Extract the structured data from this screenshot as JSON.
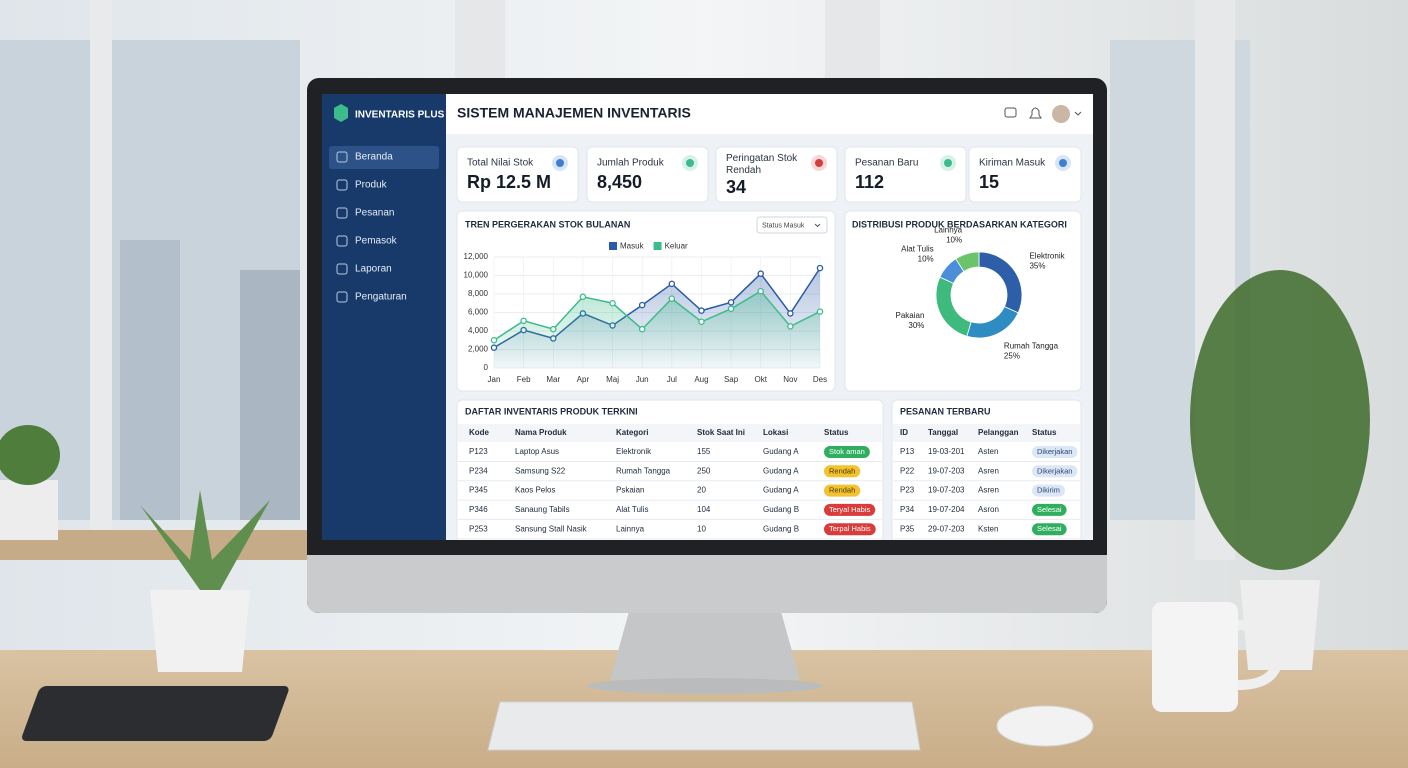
{
  "app": {
    "brand": "INVENTARIS PLUS",
    "title": "SISTEM MANAJEMEN INVENTARIS"
  },
  "sidebar": [
    "Beranda",
    "Produk",
    "Pesanan",
    "Pemasok",
    "Laporan",
    "Pengaturan"
  ],
  "kpis": [
    {
      "label": "Total Nilai Stok",
      "value": "Rp 12.5 M"
    },
    {
      "label": "Jumlah Produk",
      "value": "8,450"
    },
    {
      "label": "Peringatan Stok Rendah",
      "value": "34"
    },
    {
      "label": "Pesanan Baru",
      "value": "112"
    },
    {
      "label": "Kiriman Masuk",
      "value": "15"
    }
  ],
  "chart_data": [
    {
      "type": "line",
      "title": "TREN PERGERAKAN STOK BULANAN",
      "filter": "Status Masuk",
      "categories": [
        "Jan",
        "Feb",
        "Mar",
        "Apr",
        "Maj",
        "Jun",
        "Jul",
        "Aug",
        "Sap",
        "Okt",
        "Nov",
        "Des"
      ],
      "series": [
        {
          "name": "Masuk",
          "color": "#2b5aa6",
          "values": [
            2200,
            4100,
            3200,
            5900,
            4600,
            6800,
            9100,
            6200,
            7100,
            10200,
            5900,
            10800
          ]
        },
        {
          "name": "Keluar",
          "color": "#3dbb8a",
          "values": [
            3000,
            5100,
            4200,
            7700,
            7000,
            4200,
            7500,
            5000,
            6400,
            8300,
            4500,
            6100
          ]
        }
      ],
      "ylim": [
        0,
        12000
      ],
      "yticks": [
        0,
        {
          "value": 2000,
          "label": "2,000"
        },
        {
          "value": 4000,
          "label": "4,000"
        },
        {
          "value": 6000,
          "label": "6,000"
        },
        {
          "value": 8000,
          "label": "8,000"
        },
        {
          "value": 10000,
          "label": "10,000"
        },
        {
          "value": 12000,
          "label": "12,000"
        }
      ],
      "grid": true,
      "legend": "top"
    },
    {
      "type": "donut",
      "title": "DISTRIBUSI PRODUK BERDASARKAN KATEGORI",
      "categories": [
        "Elektronik",
        "Rumah Tangga",
        "Pakaian",
        "Alat Tulis",
        "Lainnya"
      ],
      "values": [
        35,
        25,
        30,
        10,
        10
      ],
      "value_labels": [
        "35%",
        "25%",
        "30%",
        "10%",
        "10%"
      ],
      "colors": [
        "#2c5fa8",
        "#2f8cc2",
        "#3dba7c",
        "#4b8fd8",
        "#6cc46a"
      ]
    }
  ],
  "inventory": {
    "title": "DAFTAR INVENTARIS PRODUK TERKINI",
    "columns": [
      "Kode",
      "Nama Produk",
      "Kategori",
      "Stok Saat Ini",
      "Lokasi",
      "Status"
    ],
    "rows": [
      {
        "cells": [
          "P123",
          "Laptop Asus",
          "Elektronik",
          "155",
          "Gudang A"
        ],
        "status": "Stok aman",
        "color": "#2fae5f"
      },
      {
        "cells": [
          "P234",
          "Samsung S22",
          "Rumah Tangga",
          "250",
          "Gudang A"
        ],
        "status": "Rendah",
        "color": "#f2c230"
      },
      {
        "cells": [
          "P345",
          "Kaos Pelos",
          "Pskaian",
          "20",
          "Gudang A"
        ],
        "status": "Rendah",
        "color": "#f2c230"
      },
      {
        "cells": [
          "P346",
          "Sanaung Tabils",
          "Alat Tulis",
          "104",
          "Gudang B"
        ],
        "status": "Teryal Habis",
        "color": "#d93a3a"
      },
      {
        "cells": [
          "P253",
          "Sansung Stall Nasik",
          "Lainnya",
          "10",
          "Gudang B"
        ],
        "status": "Terpal Habis",
        "color": "#d93a3a"
      }
    ]
  },
  "orders": {
    "title": "PESANAN TERBARU",
    "columns": [
      "ID",
      "Tanggal",
      "Pelanggan",
      "Status"
    ],
    "rows": [
      {
        "cells": [
          "P13",
          "19-03-201",
          "Asten"
        ],
        "status": "Dikerjakan",
        "color": "#dbe7f6"
      },
      {
        "cells": [
          "P22",
          "19-07-203",
          "Asren"
        ],
        "status": "Dikerjakan",
        "color": "#dbe7f6"
      },
      {
        "cells": [
          "P23",
          "19-07-203",
          "Asren"
        ],
        "status": "Dikirim",
        "color": "#dbe7f6"
      },
      {
        "cells": [
          "P34",
          "19-07-204",
          "Asron"
        ],
        "status": "Selesai",
        "color": "#2fae5f"
      },
      {
        "cells": [
          "P35",
          "29-07-203",
          "Ksten"
        ],
        "status": "Selesai",
        "color": "#2fae5f"
      }
    ]
  }
}
